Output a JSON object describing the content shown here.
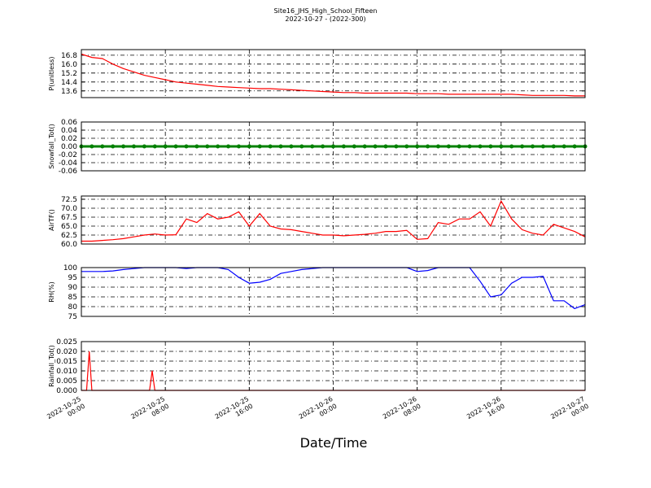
{
  "figure": {
    "title": "Site16_JHS_High_School_Fifteen",
    "subtitle": "2022-10-27 - (2022-300)",
    "xlabel": "Date/Time",
    "xlim": [
      0,
      48
    ],
    "xticks": [
      {
        "value": 0,
        "label": "2022-10-25 00:00"
      },
      {
        "value": 8,
        "label": "2022-10-25 08:00"
      },
      {
        "value": 16,
        "label": "2022-10-25 16:00"
      },
      {
        "value": 24,
        "label": "2022-10-26 00:00"
      },
      {
        "value": 32,
        "label": "2022-10-26 08:00"
      },
      {
        "value": 40,
        "label": "2022-10-26 16:00"
      },
      {
        "value": 48,
        "label": "2022-10-27 00:00"
      }
    ],
    "grid": true
  },
  "chart_data": [
    {
      "type": "line",
      "ylabel": "P(unitless)",
      "color": "#ff0000",
      "x": [
        0,
        1,
        2,
        3,
        4,
        5,
        6,
        7,
        8,
        9,
        10,
        11,
        12,
        13,
        14,
        15,
        16,
        17,
        18,
        19,
        20,
        21,
        22,
        23,
        24,
        25,
        26,
        27,
        28,
        29,
        30,
        31,
        32,
        33,
        34,
        35,
        36,
        37,
        38,
        39,
        40,
        41,
        42,
        43,
        44,
        45,
        46,
        47,
        48
      ],
      "values": [
        16.9,
        16.6,
        16.5,
        16.0,
        15.6,
        15.3,
        15.0,
        14.8,
        14.6,
        14.4,
        14.3,
        14.2,
        14.1,
        14.0,
        13.95,
        13.9,
        13.85,
        13.8,
        13.8,
        13.75,
        13.7,
        13.65,
        13.6,
        13.55,
        13.5,
        13.45,
        13.45,
        13.4,
        13.4,
        13.4,
        13.4,
        13.4,
        13.35,
        13.35,
        13.35,
        13.3,
        13.3,
        13.3,
        13.3,
        13.3,
        13.3,
        13.3,
        13.25,
        13.2,
        13.2,
        13.2,
        13.2,
        13.15,
        13.15
      ],
      "ylim": [
        13.0,
        17.3
      ],
      "yticks": [
        13.6,
        14.4,
        15.2,
        {
          "value": 16,
          "label": "16.0"
        },
        16.8
      ]
    },
    {
      "type": "line-markers",
      "ylabel": "Snowfall_Tot()",
      "color": "#008000",
      "x": [
        0,
        1,
        2,
        3,
        4,
        5,
        6,
        7,
        8,
        9,
        10,
        11,
        12,
        13,
        14,
        15,
        16,
        17,
        18,
        19,
        20,
        21,
        22,
        23,
        24,
        25,
        26,
        27,
        28,
        29,
        30,
        31,
        32,
        33,
        34,
        35,
        36,
        37,
        38,
        39,
        40,
        41,
        42,
        43,
        44,
        45,
        46,
        47,
        48
      ],
      "values": [
        0,
        0,
        0,
        0,
        0,
        0,
        0,
        0,
        0,
        0,
        0,
        0,
        0,
        0,
        0,
        0,
        0,
        0,
        0,
        0,
        0,
        0,
        0,
        0,
        0,
        0,
        0,
        0,
        0,
        0,
        0,
        0,
        0,
        0,
        0,
        0,
        0,
        0,
        0,
        0,
        0,
        0,
        0,
        0,
        0,
        0,
        0,
        0,
        0
      ],
      "ylim": [
        -0.06,
        0.06
      ],
      "yticks": [
        -0.06,
        -0.04,
        -0.02,
        {
          "value": 0,
          "label": "0.00"
        },
        0.02,
        0.04,
        0.06
      ]
    },
    {
      "type": "line",
      "ylabel": "AirTF()",
      "color": "#ff0000",
      "x": [
        0,
        1,
        2,
        3,
        4,
        5,
        6,
        7,
        8,
        9,
        10,
        11,
        12,
        13,
        14,
        15,
        16,
        17,
        18,
        19,
        20,
        21,
        22,
        23,
        24,
        25,
        26,
        27,
        28,
        29,
        30,
        31,
        32,
        33,
        34,
        35,
        36,
        37,
        38,
        39,
        40,
        41,
        42,
        43,
        44,
        45,
        46,
        47,
        48
      ],
      "values": [
        60.8,
        60.8,
        61,
        61.2,
        61.5,
        62,
        62.5,
        62.8,
        62.5,
        62.6,
        67,
        66,
        68.5,
        67,
        67.5,
        69,
        65,
        68.5,
        65,
        64.2,
        64,
        63.5,
        63,
        62.5,
        62.5,
        62.3,
        62.5,
        62.7,
        63,
        63.5,
        63.5,
        63.8,
        61.3,
        61.5,
        66,
        65.5,
        67,
        67,
        69,
        65,
        72,
        67,
        64,
        63,
        62.5,
        65.5,
        64.5,
        63.5,
        62
      ],
      "ylim": [
        60,
        73.4
      ],
      "yticks": [
        {
          "value": 60,
          "label": "60.0"
        },
        62.5,
        {
          "value": 65,
          "label": "65.0"
        },
        67.5,
        {
          "value": 70,
          "label": "70.0"
        },
        72.5
      ]
    },
    {
      "type": "line",
      "ylabel": "RH(%)",
      "color": "#0000ff",
      "x": [
        0,
        1,
        2,
        3,
        4,
        5,
        6,
        7,
        8,
        9,
        10,
        11,
        12,
        13,
        14,
        15,
        16,
        17,
        18,
        19,
        20,
        21,
        22,
        23,
        24,
        25,
        26,
        27,
        28,
        29,
        30,
        31,
        32,
        33,
        34,
        35,
        36,
        37,
        38,
        39,
        40,
        41,
        42,
        43,
        44,
        45,
        46,
        47,
        48
      ],
      "values": [
        98,
        98,
        98,
        98.3,
        99,
        99.5,
        100,
        100,
        100,
        100,
        99.5,
        100,
        100,
        100,
        99,
        95,
        92,
        92.5,
        94,
        97,
        98,
        99,
        99.5,
        100,
        100,
        100,
        100,
        100,
        100,
        100,
        100,
        100,
        98,
        98.5,
        100,
        100,
        100,
        100,
        93,
        85,
        86,
        92,
        95,
        95,
        95.5,
        83,
        83,
        79,
        81
      ],
      "ylim": [
        75,
        100
      ],
      "yticks": [
        75,
        80,
        85,
        90,
        95,
        100
      ]
    },
    {
      "type": "line",
      "ylabel": "Rainfall_Tot()",
      "color": "#ff0000",
      "x": [
        0,
        0.5,
        0.75,
        1,
        6.5,
        6.75,
        7,
        48
      ],
      "values": [
        0,
        0,
        0.02,
        0,
        0,
        0.01,
        0,
        0
      ],
      "ylim": [
        0,
        0.025
      ],
      "yticks": [
        {
          "value": 0,
          "label": "0.000"
        },
        0.005,
        {
          "value": 0.01,
          "label": "0.010"
        },
        0.015,
        {
          "value": 0.02,
          "label": "0.020"
        },
        0.025
      ]
    }
  ]
}
